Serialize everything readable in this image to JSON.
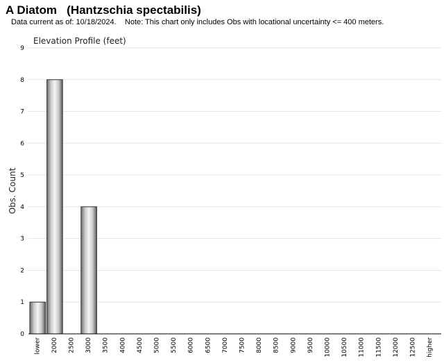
{
  "page": {
    "title": "A Diatom   (Hantzschia spectabilis)",
    "subtitle": "Data current as of: 10/18/2024.    Note: This chart only includes Obs with locational uncertainty <= 400 meters."
  },
  "chart_data": {
    "type": "bar",
    "title": "Elevation Profile (feet)",
    "xlabel": "",
    "ylabel": "Obs. Count",
    "ylim": [
      0,
      9
    ],
    "yticks": [
      0,
      1,
      2,
      3,
      4,
      5,
      6,
      7,
      8,
      9
    ],
    "grid": true,
    "categories": [
      "lower",
      "2000",
      "2500",
      "3000",
      "3500",
      "4000",
      "4500",
      "5000",
      "5500",
      "6000",
      "6500",
      "7000",
      "7500",
      "8000",
      "8500",
      "9000",
      "9500",
      "10000",
      "10500",
      "11000",
      "11500",
      "12000",
      "12500",
      "higher"
    ],
    "values": [
      1,
      8,
      0,
      4,
      0,
      0,
      0,
      0,
      0,
      0,
      0,
      0,
      0,
      0,
      0,
      0,
      0,
      0,
      0,
      0,
      0,
      0,
      0,
      0
    ]
  }
}
